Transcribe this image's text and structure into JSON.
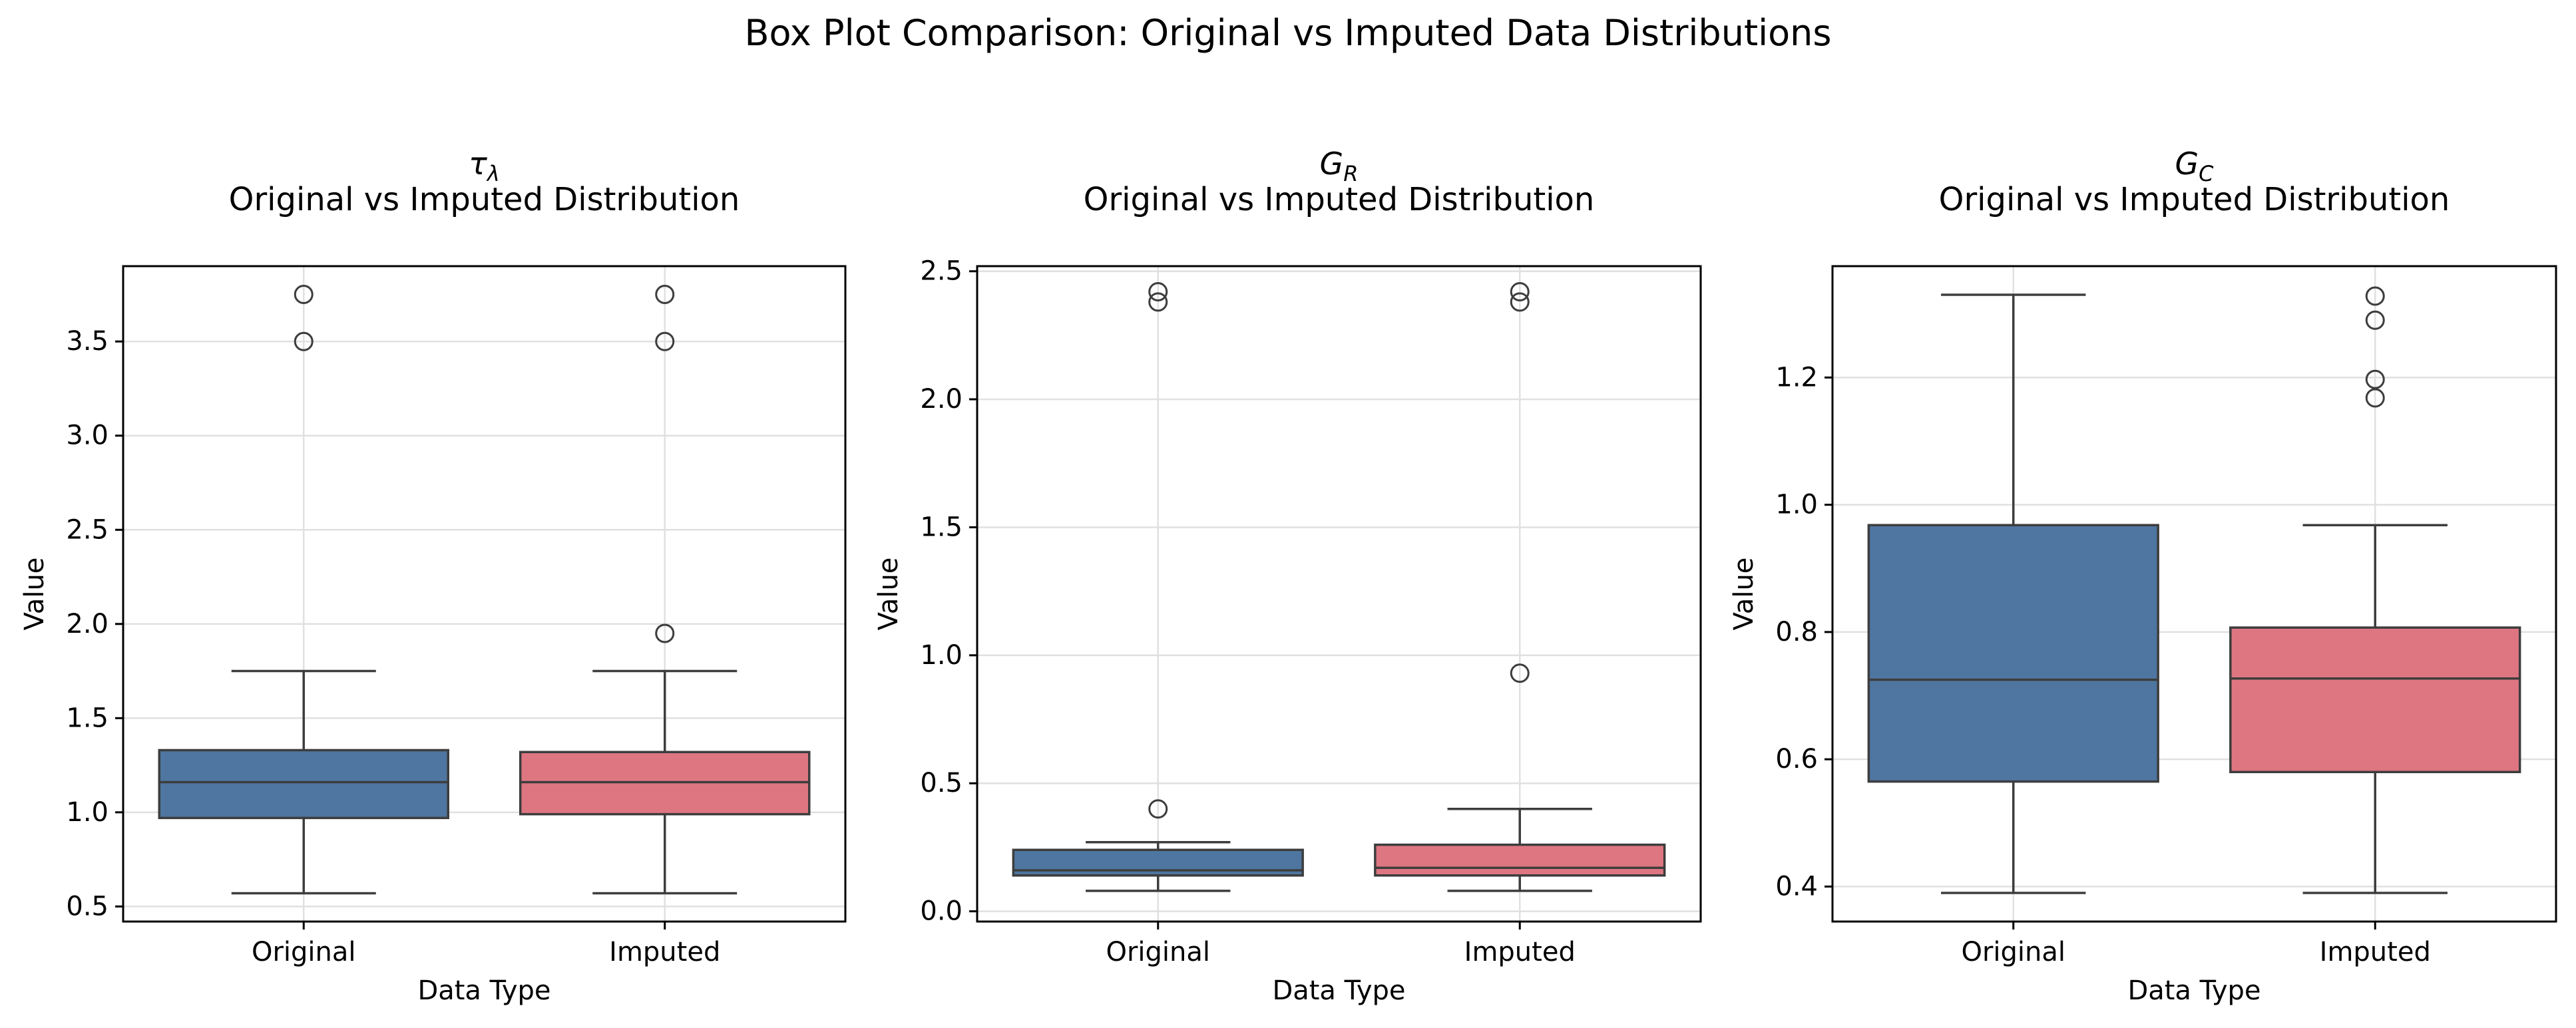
{
  "suptitle": "Box Plot Comparison: Original vs Imputed Data Distributions",
  "colors": {
    "original": "#4e76a0",
    "imputed": "#de7682",
    "edge": "#3d3d3d",
    "grid": "#e0e0e0"
  },
  "chart_data": [
    {
      "type": "box",
      "title_symbol": "τ",
      "title_subscript": "λ",
      "subtitle": "Original vs Imputed Distribution",
      "xlabel": "Data Type",
      "ylabel": "Value",
      "categories": [
        "Original",
        "Imputed"
      ],
      "ylim": [
        0.42,
        3.9
      ],
      "yticks": [
        0.5,
        1.0,
        1.5,
        2.0,
        2.5,
        3.0,
        3.5
      ],
      "ytick_labels": [
        "0.5",
        "1.0",
        "1.5",
        "2.0",
        "2.5",
        "3.0",
        "3.5"
      ],
      "grid": true,
      "boxes": [
        {
          "name": "Original",
          "whisker_low": 0.57,
          "q1": 0.97,
          "median": 1.16,
          "q3": 1.33,
          "whisker_high": 1.75,
          "outliers": [
            3.5,
            3.75
          ]
        },
        {
          "name": "Imputed",
          "whisker_low": 0.57,
          "q1": 0.99,
          "median": 1.16,
          "q3": 1.32,
          "whisker_high": 1.75,
          "outliers": [
            1.95,
            3.5,
            3.75
          ]
        }
      ]
    },
    {
      "type": "box",
      "title_symbol": "G",
      "title_subscript": "R",
      "subtitle": "Original vs Imputed Distribution",
      "xlabel": "Data Type",
      "ylabel": "Value",
      "categories": [
        "Original",
        "Imputed"
      ],
      "ylim": [
        -0.04,
        2.52
      ],
      "yticks": [
        0.0,
        0.5,
        1.0,
        1.5,
        2.0,
        2.5
      ],
      "ytick_labels": [
        "0.0",
        "0.5",
        "1.0",
        "1.5",
        "2.0",
        "2.5"
      ],
      "grid": true,
      "boxes": [
        {
          "name": "Original",
          "whisker_low": 0.08,
          "q1": 0.14,
          "median": 0.16,
          "q3": 0.24,
          "whisker_high": 0.27,
          "outliers": [
            0.4,
            2.38,
            2.42
          ]
        },
        {
          "name": "Imputed",
          "whisker_low": 0.08,
          "q1": 0.14,
          "median": 0.17,
          "q3": 0.26,
          "whisker_high": 0.4,
          "outliers": [
            0.93,
            2.38,
            2.42
          ]
        }
      ]
    },
    {
      "type": "box",
      "title_symbol": "G",
      "title_subscript": "C",
      "subtitle": "Original vs Imputed Distribution",
      "xlabel": "Data Type",
      "ylabel": "Value",
      "categories": [
        "Original",
        "Imputed"
      ],
      "ylim": [
        0.345,
        1.375
      ],
      "yticks": [
        0.4,
        0.6,
        0.8,
        1.0,
        1.2
      ],
      "ytick_labels": [
        "0.4",
        "0.6",
        "0.8",
        "1.0",
        "1.2"
      ],
      "grid": true,
      "boxes": [
        {
          "name": "Original",
          "whisker_low": 0.39,
          "q1": 0.565,
          "median": 0.725,
          "q3": 0.968,
          "whisker_high": 1.33,
          "outliers": []
        },
        {
          "name": "Imputed",
          "whisker_low": 0.39,
          "q1": 0.58,
          "median": 0.727,
          "q3": 0.807,
          "whisker_high": 0.968,
          "outliers": [
            1.168,
            1.197,
            1.29,
            1.328
          ]
        }
      ]
    }
  ]
}
